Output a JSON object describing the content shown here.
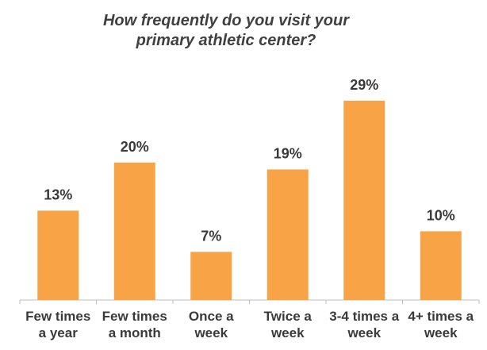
{
  "chart_data": {
    "type": "bar",
    "title_lines": [
      "How frequently do you visit your",
      "primary athletic center?"
    ],
    "categories": [
      [
        "Few times",
        "a year"
      ],
      [
        "Few times",
        "a month"
      ],
      [
        "Once a",
        "week"
      ],
      [
        "Twice a",
        "week"
      ],
      [
        "3-4 times a",
        "week"
      ],
      [
        "4+ times a",
        "week"
      ]
    ],
    "values": [
      13,
      20,
      7,
      19,
      29,
      10
    ],
    "data_labels": [
      "13%",
      "20%",
      "7%",
      "19%",
      "29%",
      "10%"
    ],
    "unit": "%",
    "ylim": [
      0,
      30
    ],
    "grid": false,
    "legend": "none",
    "bar_color": "#F9A347"
  }
}
